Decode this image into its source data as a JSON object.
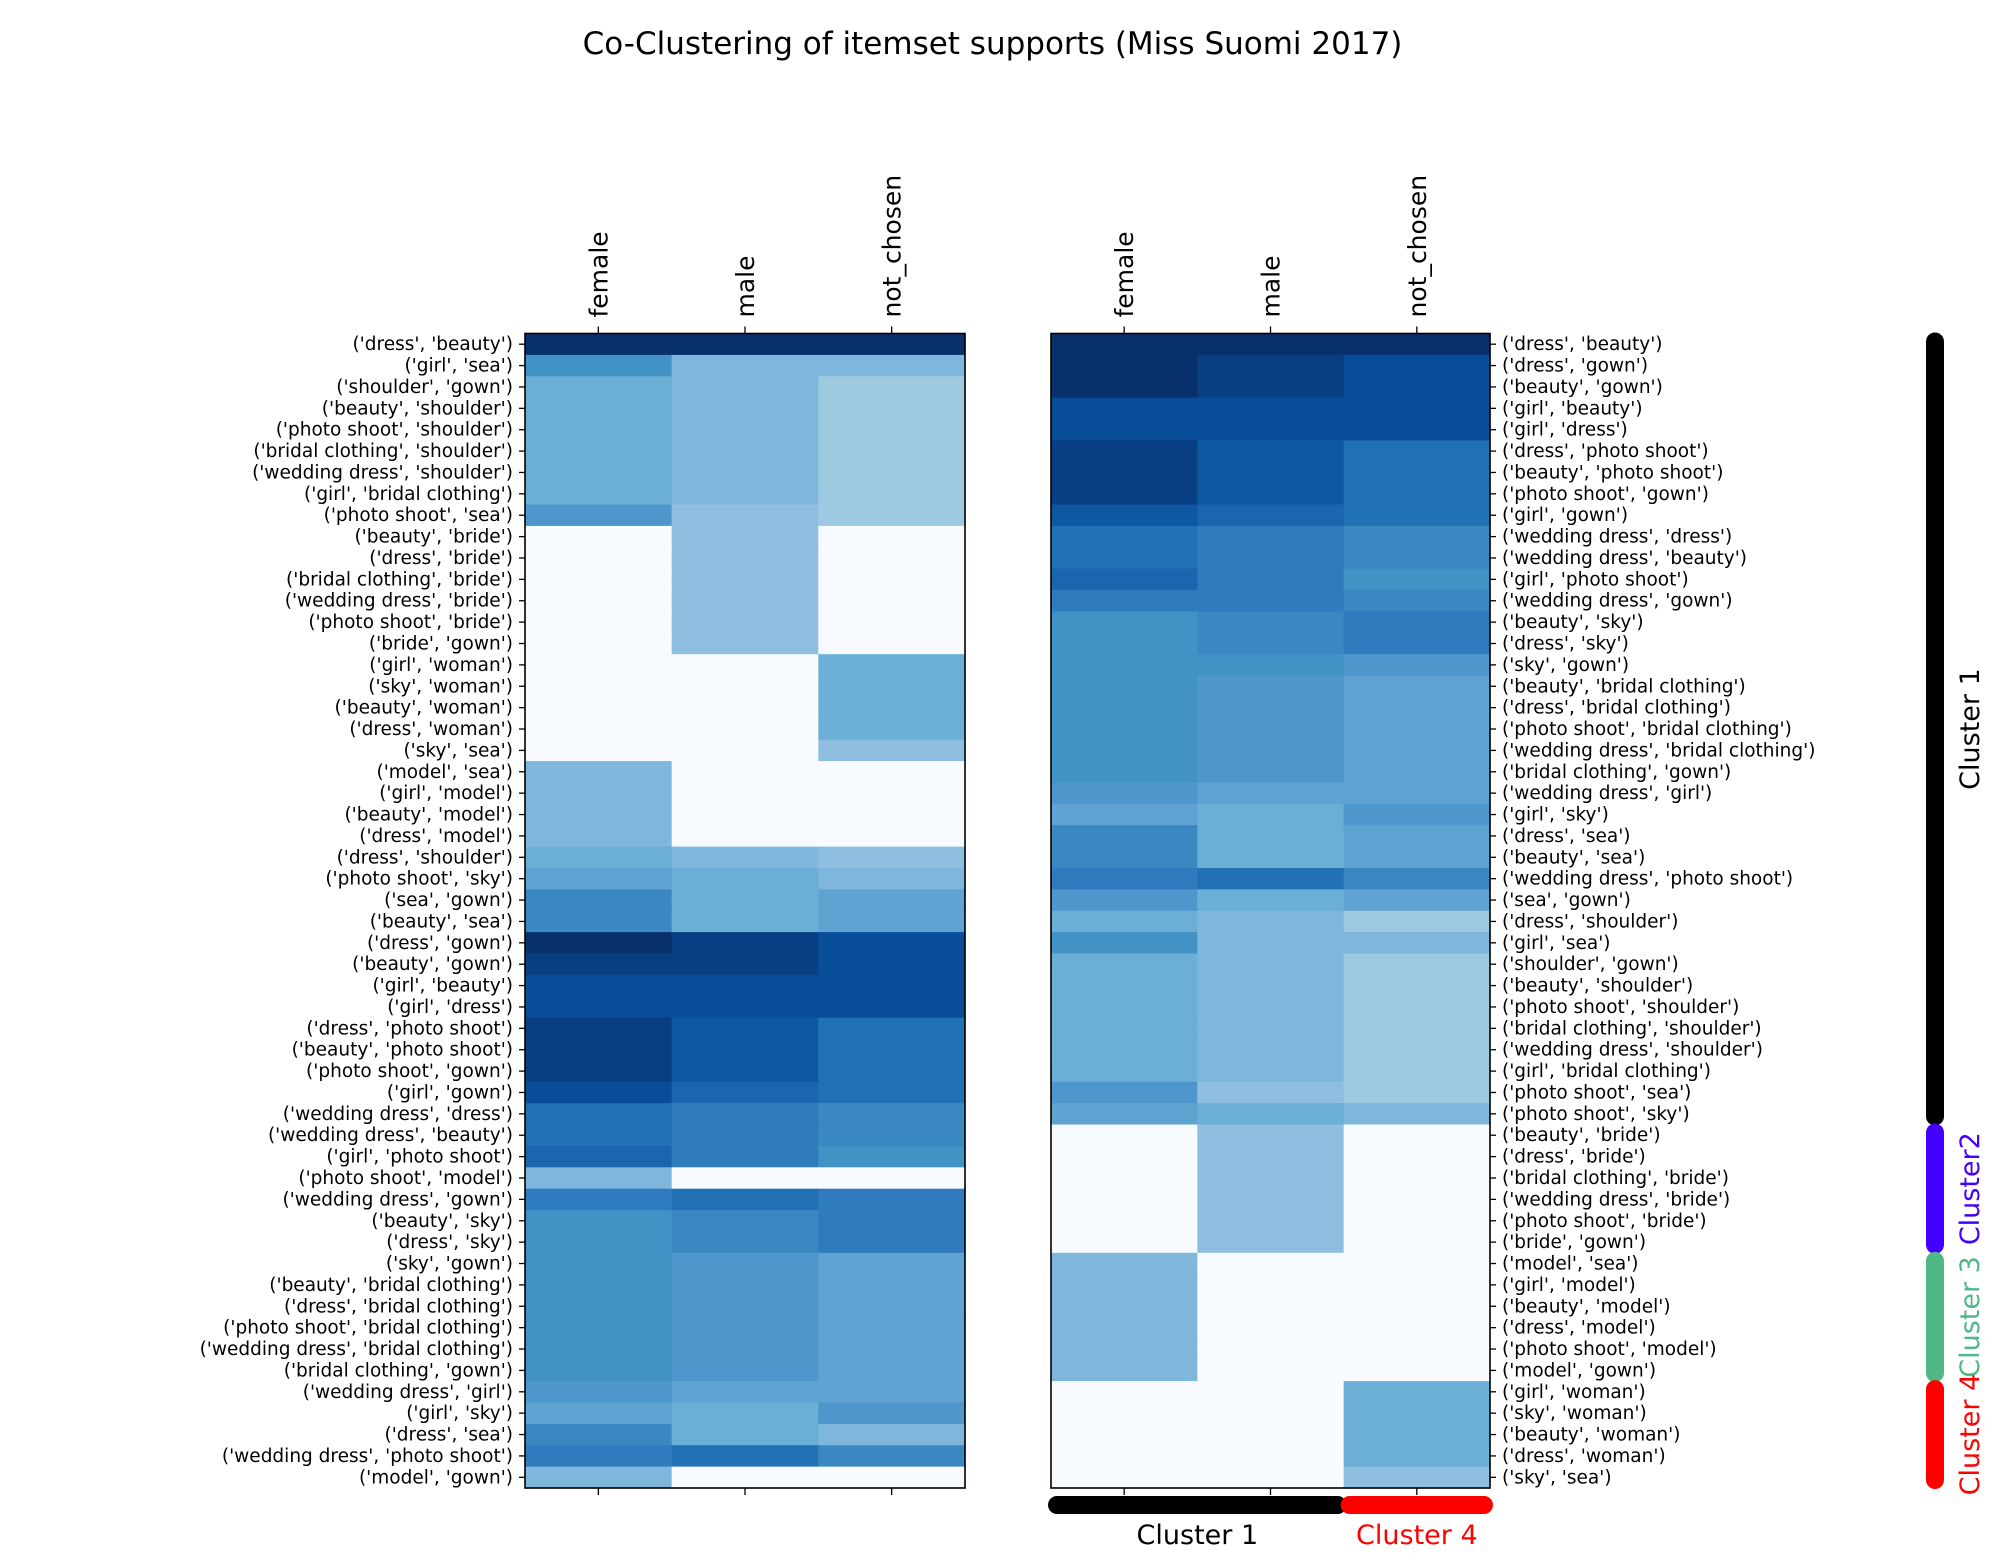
{
  "colors": {
    "cluster1": "#000000",
    "cluster2": "#4400ff",
    "cluster3": "#4fb884",
    "cluster4": "#ff0000"
  },
  "chart_data": {
    "type": "heatmap",
    "title": "Co-Clustering of itemset supports (Miss Suomi 2017)",
    "columns": [
      "female",
      "male",
      "not_chosen"
    ],
    "levels": {
      "white": "#f7fbff",
      "pale": "#9ecae1",
      "light": "#8fbfe0",
      "lightmid": "#7fb6dc",
      "mid": "#6baed6",
      "midplus": "#5fa3d3",
      "medium": "#4d97cc",
      "mediumdark": "#4292c6",
      "darkish": "#3a87c2",
      "darker": "#2f7bbd",
      "dark": "#2171b5",
      "darkplus": "#1a65ad",
      "deep": "#0e58a2",
      "deeper": "#084d98",
      "deepest": "#083f83",
      "navy": "#08306b"
    },
    "left_heatmap": {
      "row_labels": [
        "('dress', 'beauty')",
        "('girl', 'sea')",
        "('shoulder', 'gown')",
        "('beauty', 'shoulder')",
        "('photo shoot', 'shoulder')",
        "('bridal clothing', 'shoulder')",
        "('wedding dress', 'shoulder')",
        "('girl', 'bridal clothing')",
        "('photo shoot', 'sea')",
        "('beauty', 'bride')",
        "('dress', 'bride')",
        "('bridal clothing', 'bride')",
        "('wedding dress', 'bride')",
        "('photo shoot', 'bride')",
        "('bride', 'gown')",
        "('girl', 'woman')",
        "('sky', 'woman')",
        "('beauty', 'woman')",
        "('dress', 'woman')",
        "('sky', 'sea')",
        "('model', 'sea')",
        "('girl', 'model')",
        "('beauty', 'model')",
        "('dress', 'model')",
        "('dress', 'shoulder')",
        "('photo shoot', 'sky')",
        "('sea', 'gown')",
        "('beauty', 'sea')",
        "('dress', 'gown')",
        "('beauty', 'gown')",
        "('girl', 'beauty')",
        "('girl', 'dress')",
        "('dress', 'photo shoot')",
        "('beauty', 'photo shoot')",
        "('photo shoot', 'gown')",
        "('girl', 'gown')",
        "('wedding dress', 'dress')",
        "('wedding dress', 'beauty')",
        "('girl', 'photo shoot')",
        "('photo shoot', 'model')",
        "('wedding dress', 'gown')",
        "('beauty', 'sky')",
        "('dress', 'sky')",
        "('sky', 'gown')",
        "('beauty', 'bridal clothing')",
        "('dress', 'bridal clothing')",
        "('photo shoot', 'bridal clothing')",
        "('wedding dress', 'bridal clothing')",
        "('bridal clothing', 'gown')",
        "('wedding dress', 'girl')",
        "('girl', 'sky')",
        "('dress', 'sea')",
        "('wedding dress', 'photo shoot')",
        "('model', 'gown')"
      ],
      "cells": [
        [
          "navy",
          "navy",
          "navy"
        ],
        [
          "mediumdark",
          "lightmid",
          "lightmid"
        ],
        [
          "mid",
          "lightmid",
          "pale"
        ],
        [
          "mid",
          "lightmid",
          "pale"
        ],
        [
          "mid",
          "lightmid",
          "pale"
        ],
        [
          "mid",
          "lightmid",
          "pale"
        ],
        [
          "mid",
          "lightmid",
          "pale"
        ],
        [
          "mid",
          "lightmid",
          "pale"
        ],
        [
          "medium",
          "light",
          "pale"
        ],
        [
          "white",
          "light",
          "white"
        ],
        [
          "white",
          "light",
          "white"
        ],
        [
          "white",
          "light",
          "white"
        ],
        [
          "white",
          "light",
          "white"
        ],
        [
          "white",
          "light",
          "white"
        ],
        [
          "white",
          "light",
          "white"
        ],
        [
          "white",
          "white",
          "mid"
        ],
        [
          "white",
          "white",
          "mid"
        ],
        [
          "white",
          "white",
          "mid"
        ],
        [
          "white",
          "white",
          "mid"
        ],
        [
          "white",
          "white",
          "light"
        ],
        [
          "lightmid",
          "white",
          "white"
        ],
        [
          "lightmid",
          "white",
          "white"
        ],
        [
          "lightmid",
          "white",
          "white"
        ],
        [
          "lightmid",
          "white",
          "white"
        ],
        [
          "mid",
          "lightmid",
          "light"
        ],
        [
          "midplus",
          "mid",
          "lightmid"
        ],
        [
          "darkish",
          "mid",
          "midplus"
        ],
        [
          "darkish",
          "mid",
          "midplus"
        ],
        [
          "navy",
          "deepest",
          "deeper"
        ],
        [
          "deepest",
          "deepest",
          "deeper"
        ],
        [
          "deeper",
          "deeper",
          "deeper"
        ],
        [
          "deeper",
          "deeper",
          "deeper"
        ],
        [
          "deepest",
          "deep",
          "dark"
        ],
        [
          "deepest",
          "deep",
          "dark"
        ],
        [
          "deepest",
          "deep",
          "dark"
        ],
        [
          "deeper",
          "darkplus",
          "dark"
        ],
        [
          "dark",
          "darker",
          "darkish"
        ],
        [
          "dark",
          "darker",
          "darkish"
        ],
        [
          "darkplus",
          "darker",
          "mediumdark"
        ],
        [
          "lightmid",
          "white",
          "white"
        ],
        [
          "darker",
          "dark",
          "darker"
        ],
        [
          "mediumdark",
          "darkish",
          "darker"
        ],
        [
          "mediumdark",
          "darkish",
          "darker"
        ],
        [
          "mediumdark",
          "medium",
          "midplus"
        ],
        [
          "mediumdark",
          "medium",
          "midplus"
        ],
        [
          "mediumdark",
          "medium",
          "midplus"
        ],
        [
          "mediumdark",
          "medium",
          "midplus"
        ],
        [
          "mediumdark",
          "medium",
          "midplus"
        ],
        [
          "mediumdark",
          "medium",
          "midplus"
        ],
        [
          "medium",
          "midplus",
          "midplus"
        ],
        [
          "midplus",
          "mid",
          "medium"
        ],
        [
          "darkish",
          "mid",
          "lightmid"
        ],
        [
          "darker",
          "dark",
          "darkish"
        ],
        [
          "lightmid",
          "white",
          "white"
        ]
      ]
    },
    "right_heatmap": {
      "row_labels": [
        "('dress', 'beauty')",
        "('dress', 'gown')",
        "('beauty', 'gown')",
        "('girl', 'beauty')",
        "('girl', 'dress')",
        "('dress', 'photo shoot')",
        "('beauty', 'photo shoot')",
        "('photo shoot', 'gown')",
        "('girl', 'gown')",
        "('wedding dress', 'dress')",
        "('wedding dress', 'beauty')",
        "('girl', 'photo shoot')",
        "('wedding dress', 'gown')",
        "('beauty', 'sky')",
        "('dress', 'sky')",
        "('sky', 'gown')",
        "('beauty', 'bridal clothing')",
        "('dress', 'bridal clothing')",
        "('photo shoot', 'bridal clothing')",
        "('wedding dress', 'bridal clothing')",
        "('bridal clothing', 'gown')",
        "('wedding dress', 'girl')",
        "('girl', 'sky')",
        "('dress', 'sea')",
        "('beauty', 'sea')",
        "('wedding dress', 'photo shoot')",
        "('sea', 'gown')",
        "('dress', 'shoulder')",
        "('girl', 'sea')",
        "('shoulder', 'gown')",
        "('beauty', 'shoulder')",
        "('photo shoot', 'shoulder')",
        "('bridal clothing', 'shoulder')",
        "('wedding dress', 'shoulder')",
        "('girl', 'bridal clothing')",
        "('photo shoot', 'sea')",
        "('photo shoot', 'sky')",
        "('beauty', 'bride')",
        "('dress', 'bride')",
        "('bridal clothing', 'bride')",
        "('wedding dress', 'bride')",
        "('photo shoot', 'bride')",
        "('bride', 'gown')",
        "('model', 'sea')",
        "('girl', 'model')",
        "('beauty', 'model')",
        "('dress', 'model')",
        "('photo shoot', 'model')",
        "('model', 'gown')",
        "('girl', 'woman')",
        "('sky', 'woman')",
        "('beauty', 'woman')",
        "('dress', 'woman')",
        "('sky', 'sea')"
      ],
      "cells": [
        [
          "navy",
          "navy",
          "navy"
        ],
        [
          "navy",
          "deepest",
          "deeper"
        ],
        [
          "navy",
          "deepest",
          "deeper"
        ],
        [
          "deeper",
          "deeper",
          "deeper"
        ],
        [
          "deeper",
          "deeper",
          "deeper"
        ],
        [
          "deepest",
          "deep",
          "dark"
        ],
        [
          "deepest",
          "deep",
          "dark"
        ],
        [
          "deepest",
          "deep",
          "dark"
        ],
        [
          "deep",
          "darkplus",
          "dark"
        ],
        [
          "dark",
          "darker",
          "darkish"
        ],
        [
          "dark",
          "darker",
          "darkish"
        ],
        [
          "darkplus",
          "darker",
          "mediumdark"
        ],
        [
          "darker",
          "darker",
          "darkish"
        ],
        [
          "mediumdark",
          "darkish",
          "darker"
        ],
        [
          "mediumdark",
          "darkish",
          "darker"
        ],
        [
          "mediumdark",
          "mediumdark",
          "medium"
        ],
        [
          "mediumdark",
          "medium",
          "midplus"
        ],
        [
          "mediumdark",
          "medium",
          "midplus"
        ],
        [
          "mediumdark",
          "medium",
          "midplus"
        ],
        [
          "mediumdark",
          "medium",
          "midplus"
        ],
        [
          "mediumdark",
          "medium",
          "midplus"
        ],
        [
          "medium",
          "midplus",
          "midplus"
        ],
        [
          "midplus",
          "mid",
          "medium"
        ],
        [
          "darkish",
          "mid",
          "midplus"
        ],
        [
          "darkish",
          "mid",
          "midplus"
        ],
        [
          "darker",
          "dark",
          "darkish"
        ],
        [
          "medium",
          "mid",
          "midplus"
        ],
        [
          "mid",
          "lightmid",
          "pale"
        ],
        [
          "mediumdark",
          "lightmid",
          "lightmid"
        ],
        [
          "mid",
          "lightmid",
          "pale"
        ],
        [
          "mid",
          "lightmid",
          "pale"
        ],
        [
          "mid",
          "lightmid",
          "pale"
        ],
        [
          "mid",
          "lightmid",
          "pale"
        ],
        [
          "mid",
          "lightmid",
          "pale"
        ],
        [
          "mid",
          "lightmid",
          "pale"
        ],
        [
          "medium",
          "light",
          "pale"
        ],
        [
          "midplus",
          "mid",
          "lightmid"
        ],
        [
          "white",
          "light",
          "white"
        ],
        [
          "white",
          "light",
          "white"
        ],
        [
          "white",
          "light",
          "white"
        ],
        [
          "white",
          "light",
          "white"
        ],
        [
          "white",
          "light",
          "white"
        ],
        [
          "white",
          "light",
          "white"
        ],
        [
          "lightmid",
          "white",
          "white"
        ],
        [
          "lightmid",
          "white",
          "white"
        ],
        [
          "lightmid",
          "white",
          "white"
        ],
        [
          "lightmid",
          "white",
          "white"
        ],
        [
          "lightmid",
          "white",
          "white"
        ],
        [
          "lightmid",
          "white",
          "white"
        ],
        [
          "white",
          "white",
          "mid"
        ],
        [
          "white",
          "white",
          "mid"
        ],
        [
          "white",
          "white",
          "mid"
        ],
        [
          "white",
          "white",
          "mid"
        ],
        [
          "white",
          "white",
          "light"
        ]
      ]
    },
    "row_clusters": [
      {
        "label": "Cluster 1",
        "start": 0,
        "end": 37,
        "color": "#000000"
      },
      {
        "label": "Cluster2",
        "start": 37,
        "end": 43,
        "color": "#4400ff"
      },
      {
        "label": "Cluster 3",
        "start": 43,
        "end": 49,
        "color": "#4fb884"
      },
      {
        "label": "Cluster 4",
        "start": 49,
        "end": 54,
        "color": "#ff0000"
      }
    ],
    "column_clusters": [
      {
        "label": "Cluster 1",
        "start": 0,
        "end": 2,
        "color": "#000000"
      },
      {
        "label": "Cluster 4",
        "start": 2,
        "end": 3,
        "color": "#ff0000"
      }
    ]
  }
}
